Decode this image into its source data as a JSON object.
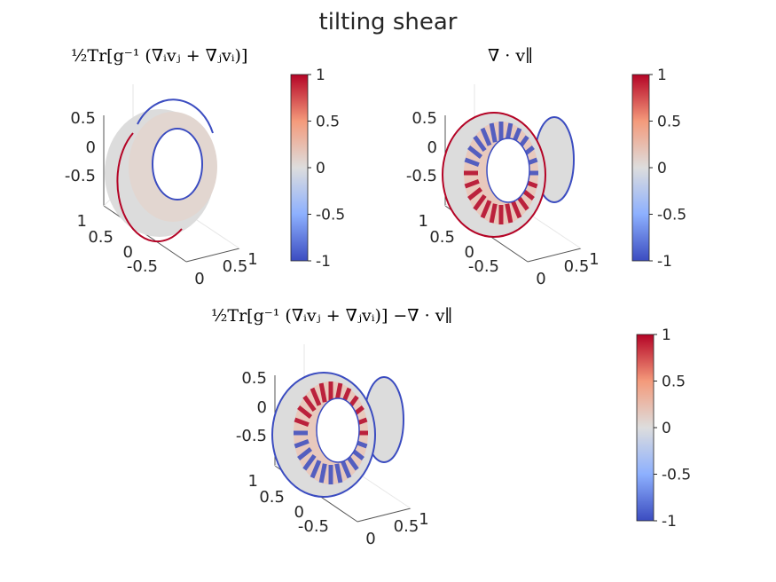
{
  "figure": {
    "title": "tilting shear"
  },
  "chart_data": [
    {
      "type": "other",
      "subtitle": "½Tr[g⁻¹ (∇ᵢvⱼ + ∇ⱼvᵢ)]",
      "z_ticks": [
        "0.5",
        "0",
        "-0.5"
      ],
      "y_ticks": [
        "1",
        "0.5",
        "0",
        "-0.5"
      ],
      "x_ticks": [
        "0",
        "0.5",
        "1"
      ],
      "colorbar": {
        "ticks": [
          "1",
          "0.5",
          "0",
          "-0.5",
          "-1"
        ],
        "range": [
          -1,
          1
        ],
        "colormap": "coolwarm"
      }
    },
    {
      "type": "other",
      "subtitle": "∇ · v∥",
      "z_ticks": [
        "0.5",
        "0",
        "-0.5"
      ],
      "y_ticks": [
        "1",
        "0.5",
        "0",
        "-0.5"
      ],
      "x_ticks": [
        "0",
        "0.5",
        "1"
      ],
      "colorbar": {
        "ticks": [
          "1",
          "0.5",
          "0",
          "-0.5",
          "-1"
        ],
        "range": [
          -1,
          1
        ],
        "colormap": "coolwarm"
      }
    },
    {
      "type": "other",
      "subtitle": "½Tr[g⁻¹ (∇ᵢvⱼ + ∇ⱼvᵢ)]  −∇ · v∥",
      "z_ticks": [
        "0.5",
        "0",
        "-0.5"
      ],
      "y_ticks": [
        "1",
        "0.5",
        "0",
        "-0.5"
      ],
      "x_ticks": [
        "0",
        "0.5",
        "1"
      ],
      "colorbar": {
        "ticks": [
          "1",
          "0.5",
          "0",
          "-0.5",
          "-1"
        ],
        "range": [
          -1,
          1
        ],
        "colormap": "coolwarm"
      }
    }
  ]
}
